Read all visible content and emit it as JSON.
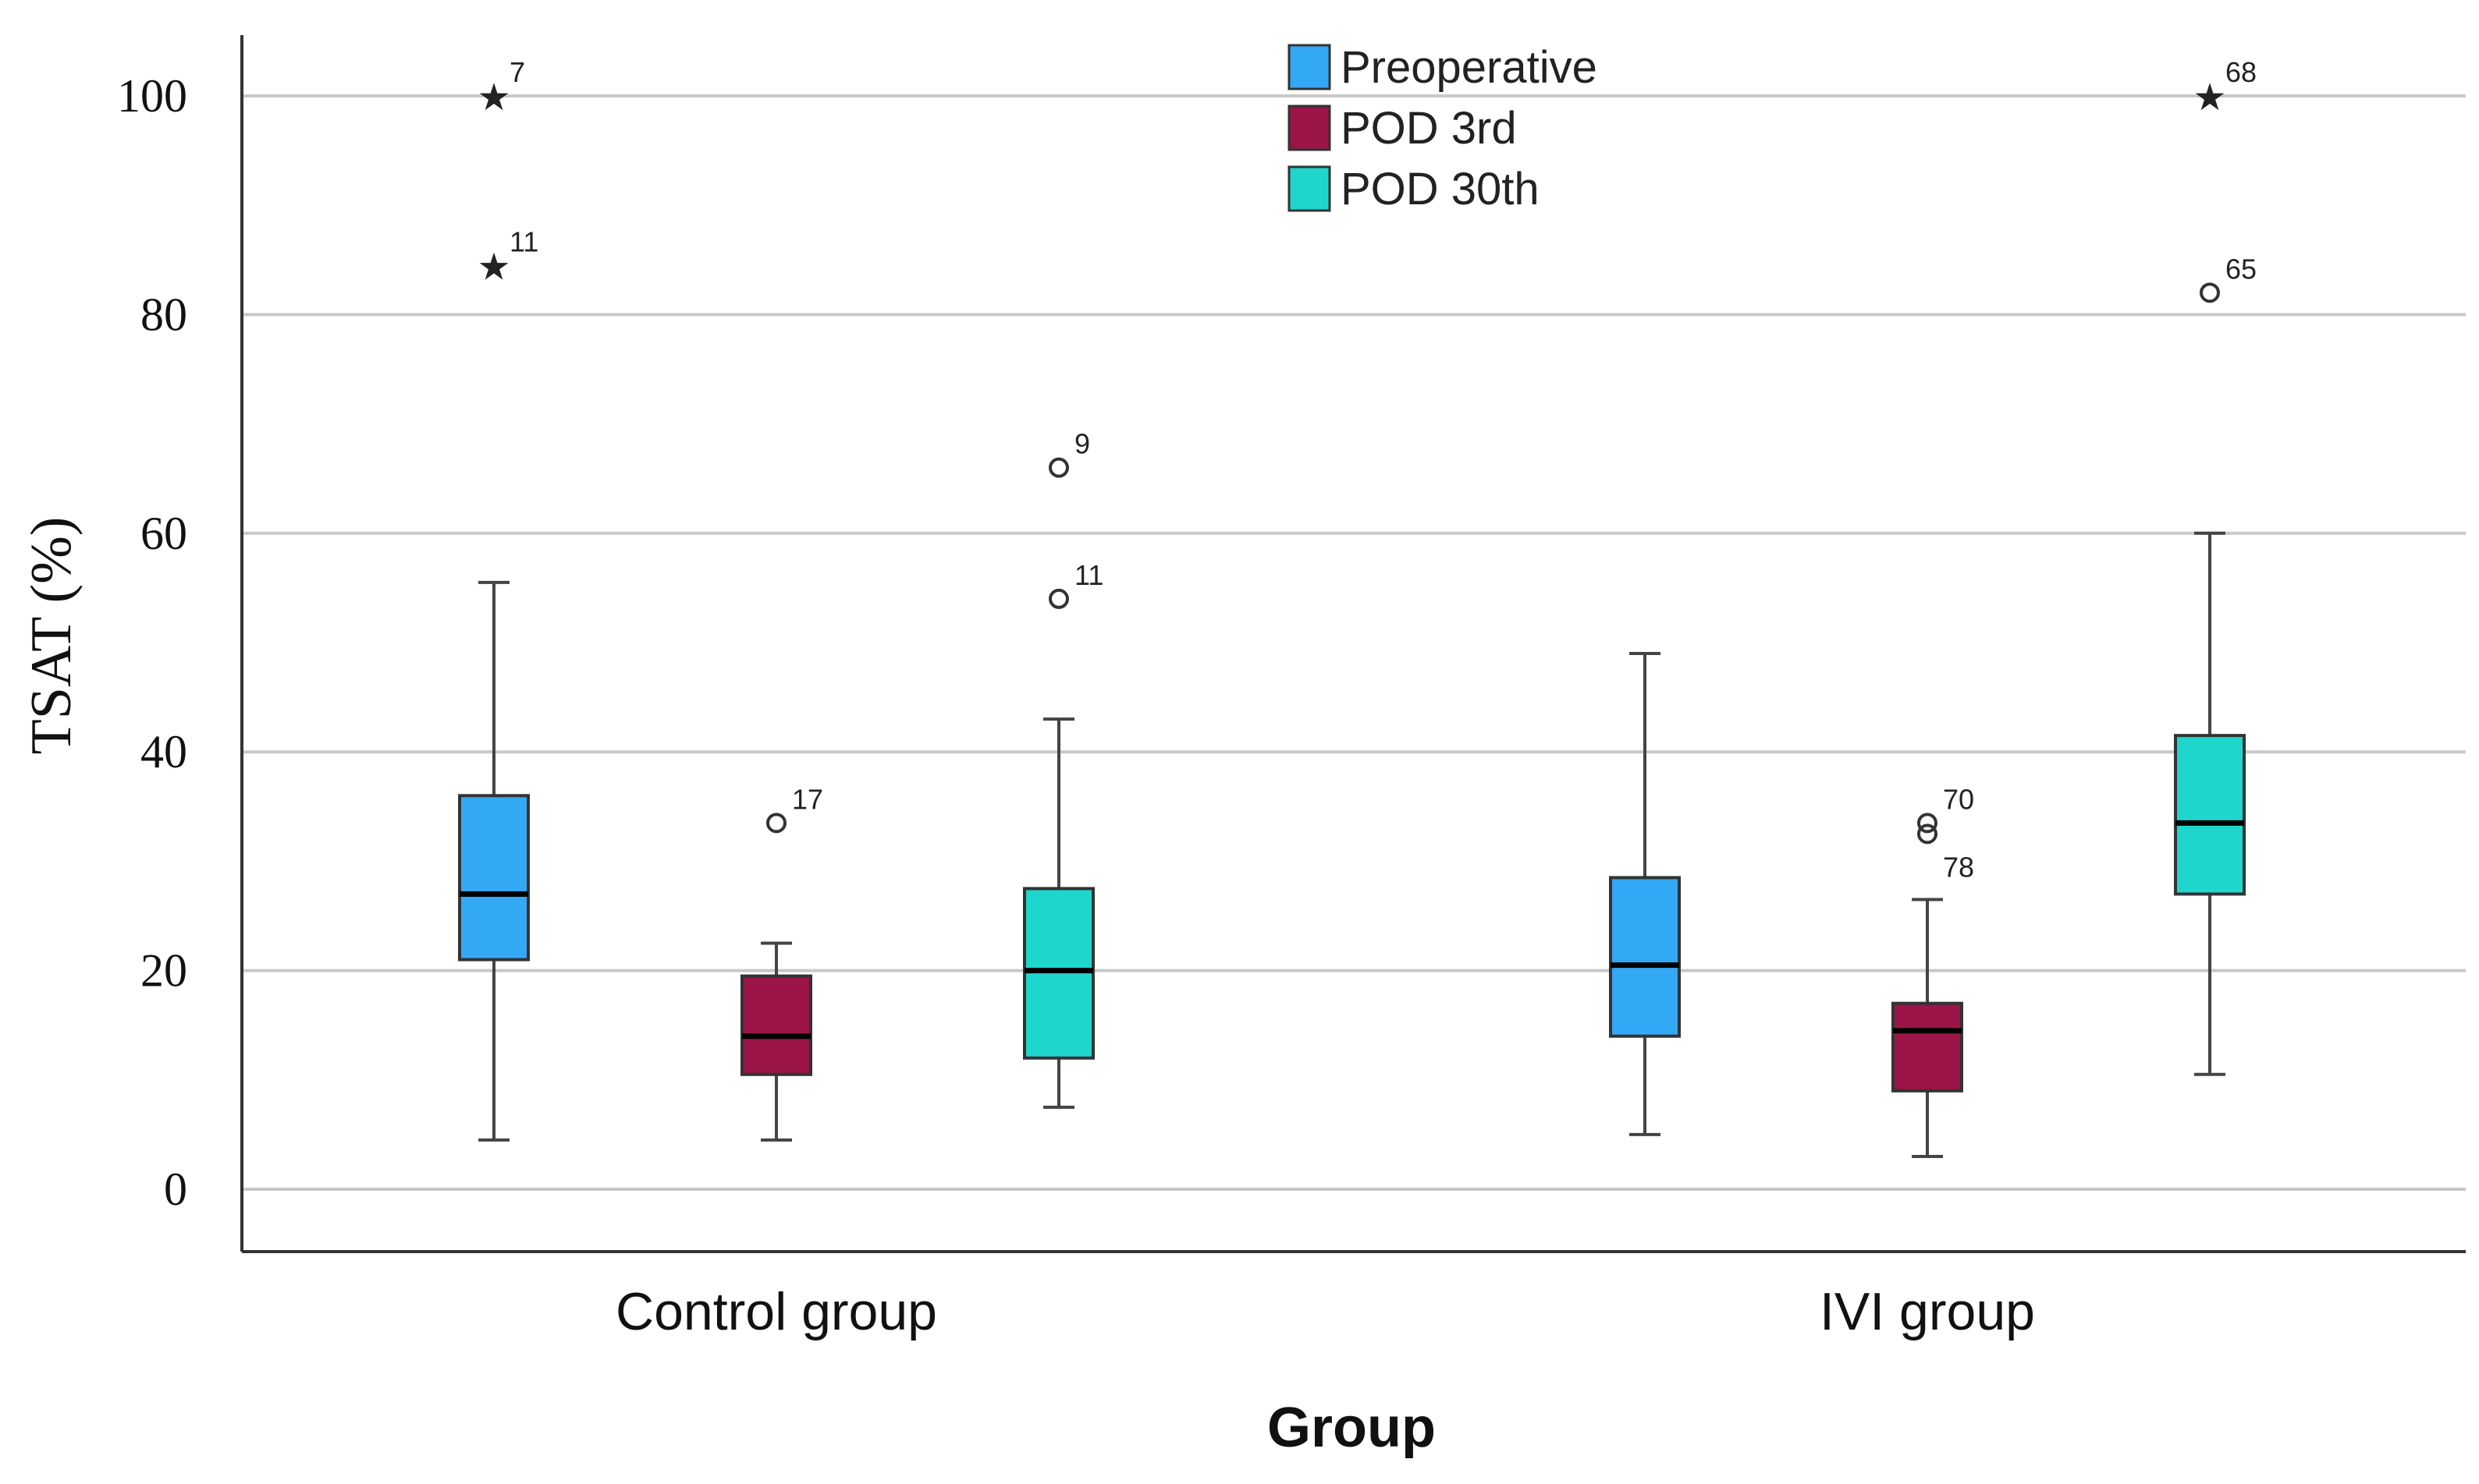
{
  "chart_data": {
    "type": "boxplot",
    "ylabel": "TSAT (%)",
    "xlabel": "Group",
    "ylim": [
      -6,
      106
    ],
    "yticks": [
      0,
      20,
      40,
      60,
      80,
      100
    ],
    "grid": true,
    "legend_placement": "top-center",
    "categories": [
      "Control group",
      "IVI group"
    ],
    "series": [
      {
        "name": "Preoperative",
        "color": "#33A8F5",
        "boxes": [
          {
            "whisker_low": 4.5,
            "q1": 21,
            "median": 27,
            "q3": 36,
            "whisker_high": 55.5,
            "outliers": [
              {
                "value": 100,
                "label": "7",
                "marker": "star"
              },
              {
                "value": 84.5,
                "label": "11",
                "marker": "star"
              }
            ]
          },
          {
            "whisker_low": 5,
            "q1": 14,
            "median": 20.5,
            "q3": 28.5,
            "whisker_high": 49,
            "outliers": []
          }
        ]
      },
      {
        "name": "POD 3rd",
        "color": "#9B1548",
        "boxes": [
          {
            "whisker_low": 4.5,
            "q1": 10.5,
            "median": 14,
            "q3": 19.5,
            "whisker_high": 22.5,
            "outliers": [
              {
                "value": 33.5,
                "label": "17",
                "marker": "circle"
              }
            ]
          },
          {
            "whisker_low": 3,
            "q1": 9,
            "median": 14.5,
            "q3": 17,
            "whisker_high": 26.5,
            "outliers": [
              {
                "value": 33.5,
                "label": "70",
                "marker": "circle"
              },
              {
                "value": 32.5,
                "label": "78",
                "marker": "circle"
              }
            ]
          }
        ]
      },
      {
        "name": "POD 30th",
        "color": "#1FD6CD",
        "boxes": [
          {
            "whisker_low": 7.5,
            "q1": 12,
            "median": 20,
            "q3": 27.5,
            "whisker_high": 43,
            "outliers": [
              {
                "value": 66,
                "label": "9",
                "marker": "circle"
              },
              {
                "value": 54,
                "label": "11",
                "marker": "circle"
              }
            ]
          },
          {
            "whisker_low": 10.5,
            "q1": 27,
            "median": 33.5,
            "q3": 41.5,
            "whisker_high": 60,
            "outliers": [
              {
                "value": 100,
                "label": "68",
                "marker": "star"
              },
              {
                "value": 82,
                "label": "65",
                "marker": "circle"
              }
            ]
          }
        ]
      }
    ]
  }
}
